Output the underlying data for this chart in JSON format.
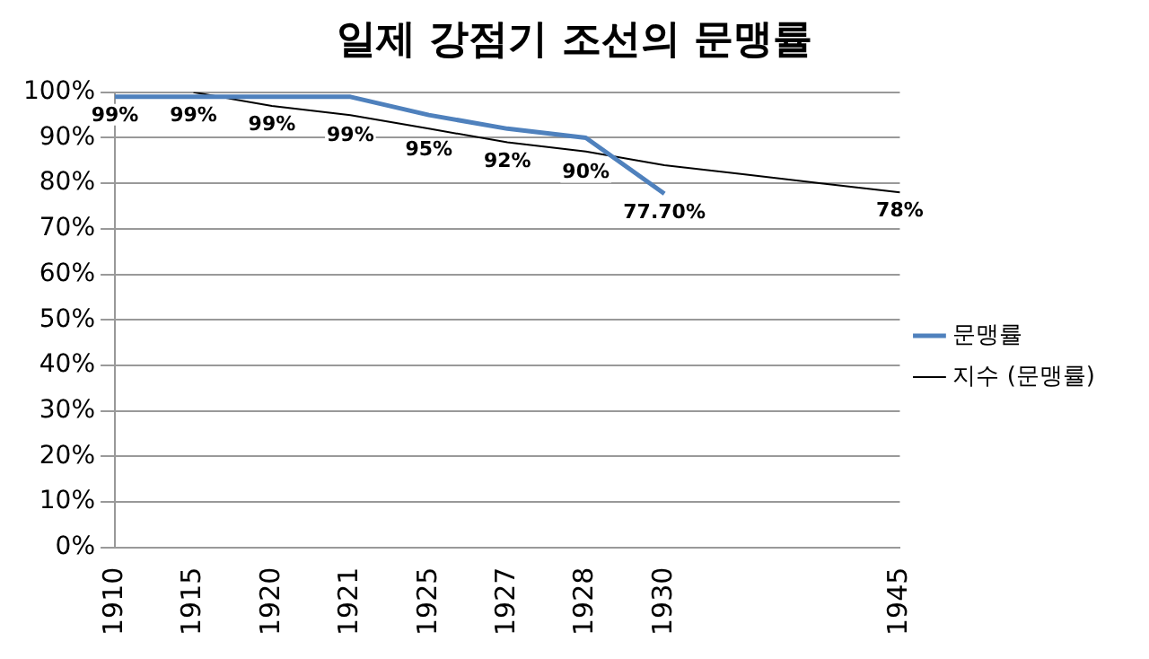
{
  "chart_data": {
    "type": "line",
    "title": "일제 강점기 조선의 문맹률",
    "categories": [
      "1910",
      "1915",
      "1920",
      "1921",
      "1925",
      "1927",
      "1928",
      "1930",
      null,
      null,
      "1945"
    ],
    "series": [
      {
        "name": "문맹률",
        "color": "#4f81bd",
        "values": [
          99,
          99,
          99,
          99,
          95,
          92,
          90,
          77.7,
          null,
          null,
          null
        ],
        "value_labels": [
          "99%",
          "99%",
          "99%",
          "99%",
          "95%",
          "92%",
          "90%",
          "77.70%",
          null,
          null,
          null
        ]
      },
      {
        "name": "지수 (문맹률)",
        "color": "#000000",
        "values": [
          null,
          100,
          97,
          95,
          92,
          89,
          87,
          84,
          82,
          80,
          78
        ]
      }
    ],
    "annotations": [
      {
        "text": "78%",
        "x": "1945",
        "y": 78
      }
    ],
    "ylim": [
      0,
      100
    ],
    "yticks": [
      {
        "value": 0,
        "label": "0%"
      },
      {
        "value": 10,
        "label": "10%"
      },
      {
        "value": 20,
        "label": "20%"
      },
      {
        "value": 30,
        "label": "30%"
      },
      {
        "value": 40,
        "label": "40%"
      },
      {
        "value": 50,
        "label": "50%"
      },
      {
        "value": 60,
        "label": "60%"
      },
      {
        "value": 70,
        "label": "70%"
      },
      {
        "value": 80,
        "label": "80%"
      },
      {
        "value": 90,
        "label": "90%"
      },
      {
        "value": 100,
        "label": "100%"
      }
    ],
    "grid": "y",
    "legend": "right",
    "marker": "none",
    "line_style": "solid"
  }
}
